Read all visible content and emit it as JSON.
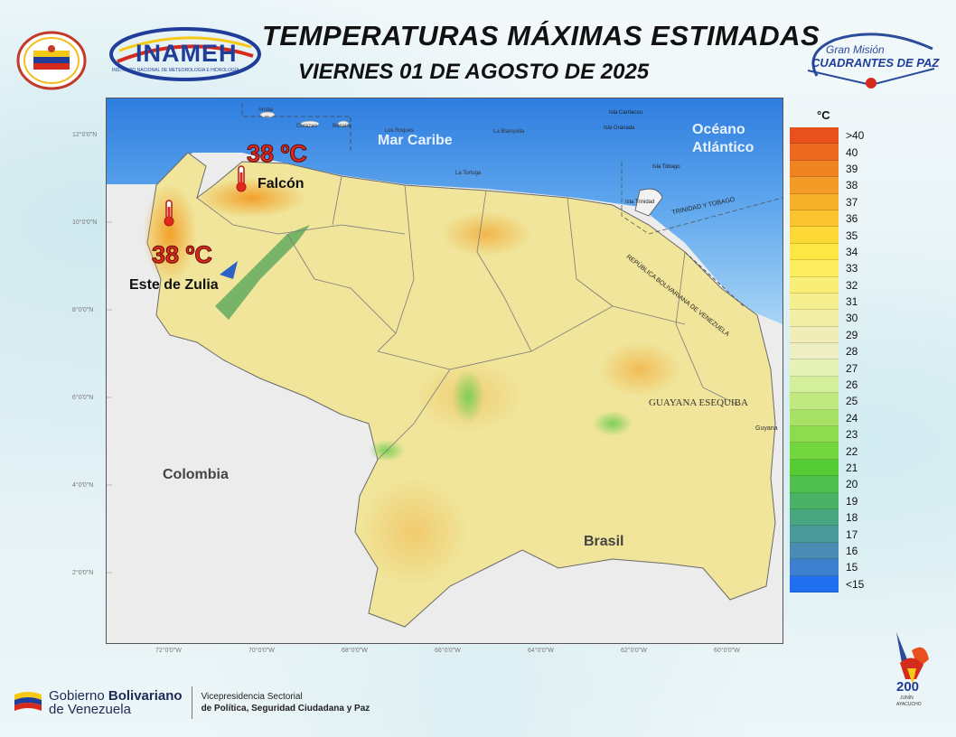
{
  "header": {
    "title": "TEMPERATURAS MÁXIMAS ESTIMADAS",
    "subtitle": "VIERNES 01 DE AGOSTO DE 2025",
    "inameh_logo_text": "INAMEH",
    "inameh_logo_subtext": "INSTITUTO NACIONAL DE METEOROLOGÍA E HIDROLOGÍA",
    "gmcp_logo_line1": "Gran Misión",
    "gmcp_logo_line2": "CUADRANTES DE PAZ"
  },
  "map": {
    "labels": {
      "mar_caribe": "Mar Caribe",
      "oceano": "Océano",
      "atlantico": "Atlántico",
      "colombia": "Colombia",
      "brasil": "Brasil",
      "guayana_esequiba": "GUAYANA ESEQUIBA",
      "trinidad": "TRINIDAD Y TOBAGO",
      "republica": "REPÚBLICA BOLIVARIANA DE VENEZUELA",
      "guyana": "Guyana",
      "aruba": "Aruba",
      "curazao": "Curazao",
      "bonaire": "Bonaire",
      "isla_carriacou": "Isla Carriacou",
      "isla_granada": "Isla Granada",
      "isla_tobago": "Isla Tobago",
      "isla_trinidad": "Isla Trinidad",
      "la_blanquilla": "La Blanquilla",
      "la_tortuga": "La Tortuga",
      "los_roques": "Los Roques"
    },
    "latitudes": [
      "12°0'0\"N",
      "10°0'0\"N",
      "8°0'0\"N",
      "6°0'0\"N",
      "4°0'0\"N",
      "2°0'0\"N"
    ],
    "longitudes": [
      "72°0'0\"W",
      "70°0'0\"W",
      "68°0'0\"W",
      "66°0'0\"W",
      "64°0'0\"W",
      "62°0'0\"W",
      "60°0'0\"W"
    ],
    "annotations": [
      {
        "temp": "38 ºC",
        "place": "Falcón"
      },
      {
        "temp": "38 ºC",
        "place": "Este de Zulia"
      }
    ]
  },
  "legend": {
    "unit": "°C",
    "entries": [
      {
        "label": ">40",
        "color": "#e8501e"
      },
      {
        "label": "40",
        "color": "#ec6a1f"
      },
      {
        "label": "39",
        "color": "#f08422"
      },
      {
        "label": "38",
        "color": "#f49a26"
      },
      {
        "label": "37",
        "color": "#f7b02a"
      },
      {
        "label": "36",
        "color": "#fac52e"
      },
      {
        "label": "35",
        "color": "#fcd936"
      },
      {
        "label": "34",
        "color": "#fde843"
      },
      {
        "label": "33",
        "color": "#fcee5e"
      },
      {
        "label": "32",
        "color": "#f9ef78"
      },
      {
        "label": "31",
        "color": "#f6ef90"
      },
      {
        "label": "30",
        "color": "#f3eea6"
      },
      {
        "label": "29",
        "color": "#f0edb8"
      },
      {
        "label": "28",
        "color": "#eeeec4"
      },
      {
        "label": "27",
        "color": "#e6f2b6"
      },
      {
        "label": "26",
        "color": "#d4ef9a"
      },
      {
        "label": "25",
        "color": "#bfe97e"
      },
      {
        "label": "24",
        "color": "#a7e266"
      },
      {
        "label": "23",
        "color": "#8ddb4f"
      },
      {
        "label": "22",
        "color": "#72d63e"
      },
      {
        "label": "21",
        "color": "#55cc34"
      },
      {
        "label": "20",
        "color": "#4fbf4e"
      },
      {
        "label": "19",
        "color": "#4ab267"
      },
      {
        "label": "18",
        "color": "#48a680"
      },
      {
        "label": "17",
        "color": "#4a9a99"
      },
      {
        "label": "16",
        "color": "#4a8cb3"
      },
      {
        "label": "15",
        "color": "#3f7fd0"
      },
      {
        "label": "<15",
        "color": "#1f6ff0"
      }
    ]
  },
  "footer": {
    "gov_line1_a": "Gobierno ",
    "gov_line1_b": "Bolivariano",
    "gov_line2": "de Venezuela",
    "vice_line1": "Vicepresidencia Sectorial",
    "vice_line2": "de Política, Seguridad Ciudadana y Paz",
    "logo_200": "200",
    "logo_junin": "JUNÍN",
    "logo_ayacucho": "AYACUCHO"
  }
}
